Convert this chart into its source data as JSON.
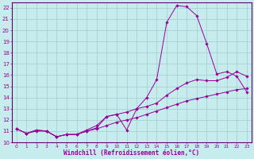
{
  "xlabel": "Windchill (Refroidissement éolien,°C)",
  "background_color": "#c6ecee",
  "grid_color": "#a0cccc",
  "line_color": "#990099",
  "spine_color": "#660066",
  "xmin": 0,
  "xmax": 23,
  "ymin": 10,
  "ymax": 22,
  "series": [
    {
      "x": [
        0,
        1,
        2,
        3,
        4,
        5,
        6,
        7,
        8,
        9,
        10,
        11,
        12,
        13,
        14,
        15,
        16,
        17,
        18,
        19,
        20,
        21,
        22,
        23
      ],
      "y": [
        11.2,
        10.8,
        11.1,
        11.0,
        10.5,
        10.7,
        10.7,
        11.0,
        11.3,
        12.3,
        12.5,
        11.1,
        13.0,
        14.0,
        15.6,
        20.7,
        22.2,
        22.1,
        21.3,
        18.8,
        16.1,
        16.3,
        15.9,
        14.5
      ]
    },
    {
      "x": [
        0,
        1,
        2,
        3,
        4,
        5,
        6,
        7,
        8,
        9,
        10,
        11,
        12,
        13,
        14,
        15,
        16,
        17,
        18,
        19,
        20,
        21,
        22,
        23
      ],
      "y": [
        11.2,
        10.8,
        11.1,
        11.0,
        10.5,
        10.7,
        10.7,
        11.1,
        11.5,
        12.3,
        12.5,
        12.7,
        13.0,
        13.2,
        13.5,
        14.2,
        14.8,
        15.3,
        15.6,
        15.5,
        15.5,
        15.8,
        16.3,
        15.9
      ]
    },
    {
      "x": [
        0,
        1,
        2,
        3,
        4,
        5,
        6,
        7,
        8,
        9,
        10,
        11,
        12,
        13,
        14,
        15,
        16,
        17,
        18,
        19,
        20,
        21,
        22,
        23
      ],
      "y": [
        11.2,
        10.8,
        11.0,
        11.0,
        10.5,
        10.7,
        10.7,
        11.0,
        11.2,
        11.5,
        11.8,
        12.0,
        12.2,
        12.5,
        12.8,
        13.1,
        13.4,
        13.7,
        13.9,
        14.1,
        14.3,
        14.5,
        14.7,
        14.8
      ]
    }
  ]
}
